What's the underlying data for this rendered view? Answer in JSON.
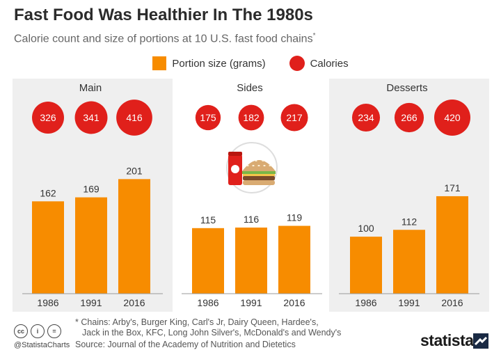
{
  "header": {
    "title": "Fast Food Was Healthier In The 1980s",
    "subtitle": "Calorie count and size of portions at 10 U.S. fast food chains",
    "subtitle_mark": "*"
  },
  "legend": {
    "portion": "Portion size (grams)",
    "calories": "Calories"
  },
  "colors": {
    "portion": "#f78c00",
    "calories": "#e0201b",
    "panel": "#efefef"
  },
  "chart_data": {
    "type": "bar",
    "title": "Fast Food Was Healthier In The 1980s",
    "subtitle": "Calorie count and size of portions at 10 U.S. fast food chains*",
    "categories": [
      "1986",
      "1991",
      "2016"
    ],
    "ylim": [
      0,
      210
    ],
    "panels": [
      {
        "name": "Main",
        "portion": [
          162,
          169,
          201
        ],
        "calories": [
          326,
          341,
          416
        ]
      },
      {
        "name": "Sides",
        "portion": [
          115,
          116,
          119
        ],
        "calories": [
          175,
          182,
          217
        ]
      },
      {
        "name": "Desserts",
        "portion": [
          100,
          112,
          171
        ],
        "calories": [
          234,
          266,
          420
        ]
      }
    ]
  },
  "footer": {
    "footnote_line1": "* Chains: Arby's, Burger King, Carl's Jr, Dairy Queen, Hardee's,",
    "footnote_line2": "Jack in the Box, KFC, Long John Silver's, McDonald's and Wendy's",
    "source": "Source: Journal of the Academy of Nutrition and Dietetics",
    "handle": "@StatistaCharts",
    "brand": "statista",
    "cc_labels": [
      "cc",
      "i",
      "="
    ]
  }
}
